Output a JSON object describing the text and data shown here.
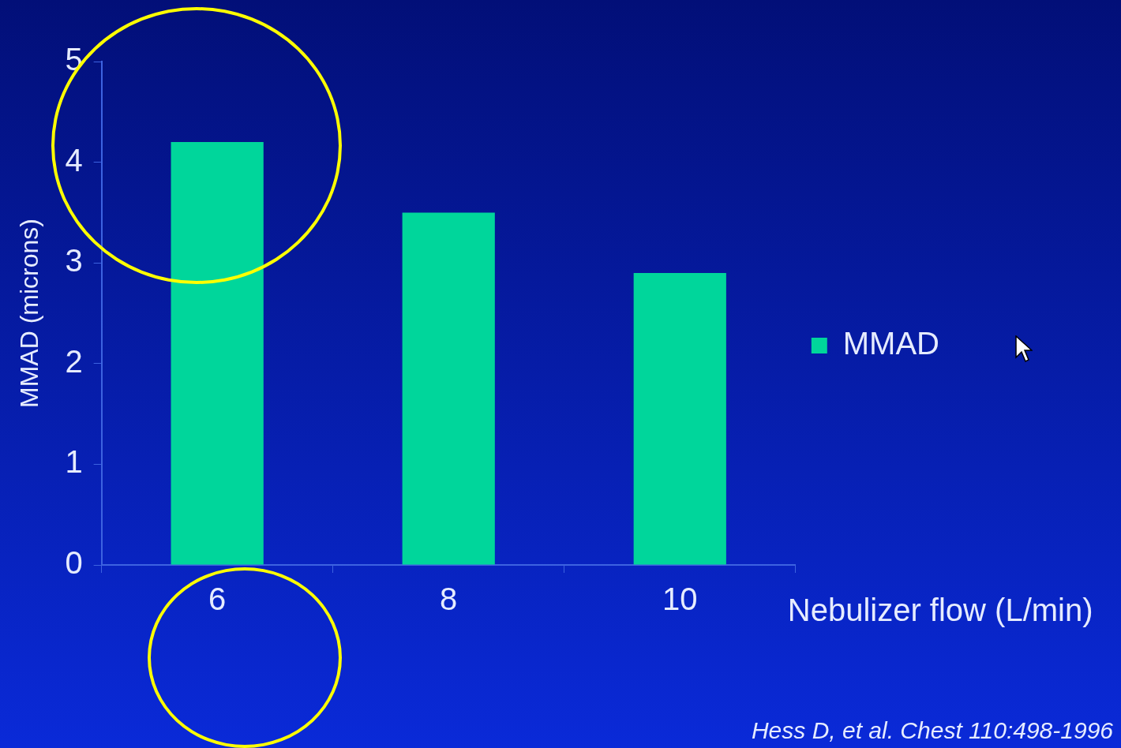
{
  "chart_data": {
    "type": "bar",
    "categories": [
      "6",
      "8",
      "10"
    ],
    "series": [
      {
        "name": "MMAD",
        "color": "#00d69b",
        "values": [
          4.2,
          3.5,
          2.9
        ]
      }
    ],
    "ylabel": "MMAD (microns)",
    "xlabel": "Nebulizer flow (L/min)",
    "ylim": [
      0,
      5
    ],
    "yticks": [
      0,
      1,
      2,
      3,
      4,
      5
    ],
    "grid": false,
    "legend": "right",
    "annotations": [
      "Hess D, et al. Chest 110:498-1996"
    ]
  }
}
